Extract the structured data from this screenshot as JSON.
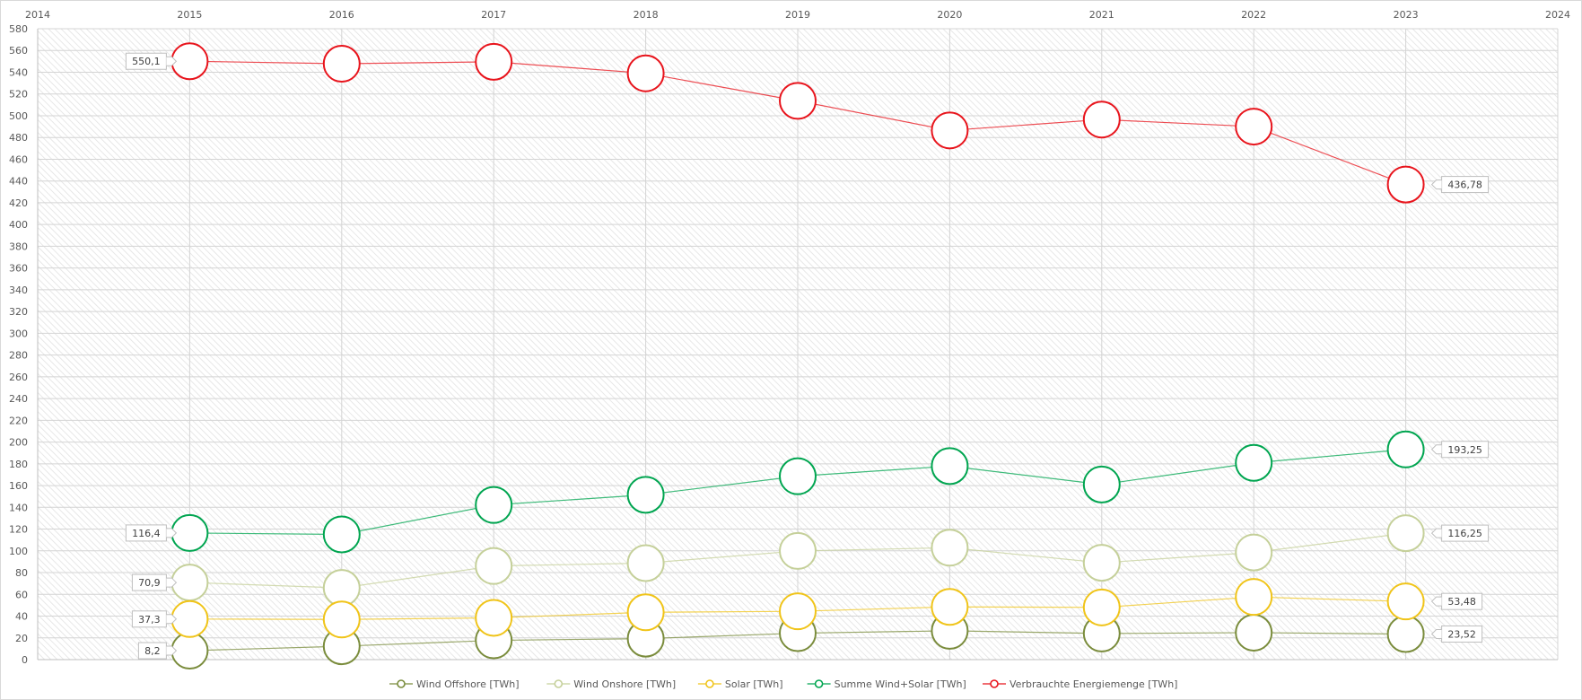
{
  "chart_data": {
    "type": "line",
    "x": [
      2015,
      2016,
      2017,
      2018,
      2019,
      2020,
      2021,
      2022,
      2023
    ],
    "xlim": [
      2014,
      2024
    ],
    "xticks": [
      "2014",
      "2015",
      "2016",
      "2017",
      "2018",
      "2019",
      "2020",
      "2021",
      "2022",
      "2023",
      "2024"
    ],
    "ylim": [
      0,
      580
    ],
    "yticks": [
      "0",
      "20",
      "40",
      "60",
      "80",
      "100",
      "120",
      "140",
      "160",
      "180",
      "200",
      "220",
      "240",
      "260",
      "280",
      "300",
      "320",
      "340",
      "360",
      "380",
      "400",
      "420",
      "440",
      "460",
      "480",
      "500",
      "520",
      "540",
      "560",
      "580"
    ],
    "x_axis_position": "top",
    "grid": true,
    "plot_background": "diagonal hatch",
    "legend_position": "bottom",
    "series": [
      {
        "name": "Wind Offshore [TWh]",
        "color": "#7a8c3c",
        "values": [
          8.2,
          12.3,
          17.7,
          19.3,
          24.3,
          26.5,
          24.0,
          24.8,
          23.52
        ],
        "labels": [
          {
            "index": 0,
            "text": "8,2",
            "side": "left"
          },
          {
            "index": 8,
            "text": "23,52",
            "side": "right"
          }
        ]
      },
      {
        "name": "Wind Onshore [TWh]",
        "color": "#c5d09a",
        "values": [
          70.9,
          65.9,
          86.1,
          88.7,
          99.9,
          102.9,
          89.0,
          98.5,
          116.25
        ],
        "labels": [
          {
            "index": 0,
            "text": "70,9",
            "side": "left"
          },
          {
            "index": 8,
            "text": "116,25",
            "side": "right"
          }
        ]
      },
      {
        "name": "Solar [TWh]",
        "color": "#f0c419",
        "values": [
          37.3,
          36.9,
          38.4,
          43.5,
          44.4,
          48.5,
          48.0,
          57.6,
          53.48
        ],
        "labels": [
          {
            "index": 0,
            "text": "37,3",
            "side": "left"
          },
          {
            "index": 8,
            "text": "53,48",
            "side": "right"
          }
        ]
      },
      {
        "name": "Summe Wind+Solar [TWh]",
        "color": "#00a550",
        "values": [
          116.4,
          115.1,
          142.2,
          151.5,
          168.6,
          177.9,
          161.0,
          180.9,
          193.25
        ],
        "labels": [
          {
            "index": 0,
            "text": "116,4",
            "side": "left"
          },
          {
            "index": 8,
            "text": "193,25",
            "side": "right"
          }
        ]
      },
      {
        "name": "Verbrauchte Energiemenge [TWh]",
        "color": "#e8141c",
        "values": [
          550.1,
          547.8,
          549.6,
          539.0,
          513.7,
          486.5,
          496.5,
          490.0,
          436.78
        ],
        "labels": [
          {
            "index": 0,
            "text": "550,1",
            "side": "left"
          },
          {
            "index": 8,
            "text": "436,78",
            "side": "right"
          }
        ]
      }
    ]
  }
}
